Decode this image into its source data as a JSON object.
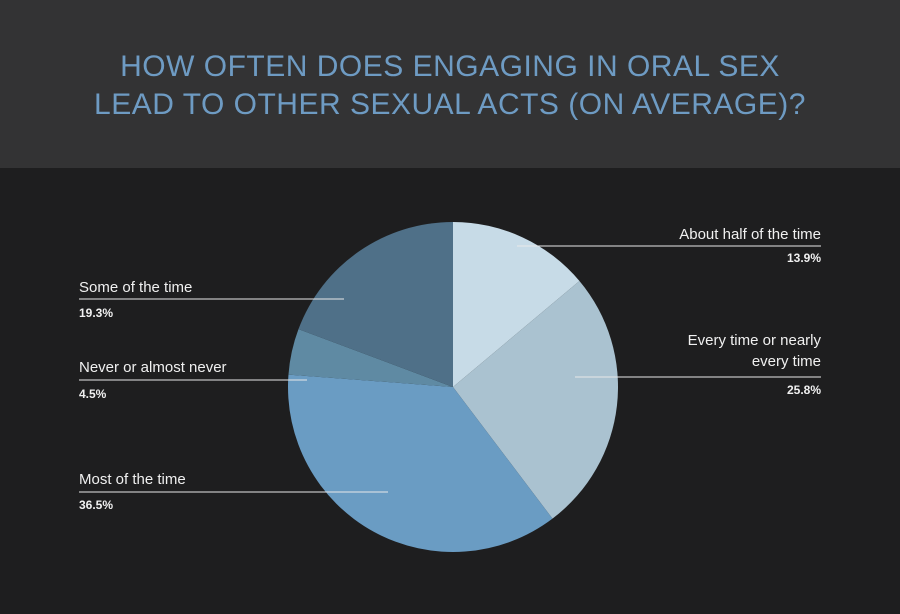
{
  "title_lines": [
    "HOW OFTEN DOES ENGAGING IN ORAL SEX",
    "LEAD TO OTHER SEXUAL ACTS (ON AVERAGE)?"
  ],
  "colors": {
    "title": "#6e9bc3",
    "about_half": "#c7dbe7",
    "every_time": "#aac2d0",
    "most": "#6a9cc3",
    "never": "#5f8aa3",
    "some": "#4f7088"
  },
  "chart_data": {
    "type": "pie",
    "title": "HOW OFTEN DOES ENGAGING IN ORAL SEX LEAD TO OTHER SEXUAL ACTS (ON AVERAGE)?",
    "slices": [
      {
        "label": "About half of the time",
        "value": 13.9,
        "display": "13.9%",
        "color": "#c7dbe7"
      },
      {
        "label": "Every time or nearly every time",
        "value": 25.8,
        "display": "25.8%",
        "color": "#aac2d0"
      },
      {
        "label": "Most of the time",
        "value": 36.5,
        "display": "36.5%",
        "color": "#6a9cc3"
      },
      {
        "label": "Never or almost never",
        "value": 4.5,
        "display": "4.5%",
        "color": "#5f8aa3"
      },
      {
        "label": "Some of the time",
        "value": 19.3,
        "display": "19.3%",
        "color": "#4f7088"
      }
    ]
  },
  "labels": {
    "about_half": {
      "line1": "About half of the time",
      "pct": "13.9%"
    },
    "every_time": {
      "line1": "Every time or nearly",
      "line2": "every time",
      "pct": "25.8%"
    },
    "most": {
      "line1": "Most of the time",
      "pct": "36.5%"
    },
    "never": {
      "line1": "Never or almost never",
      "pct": "4.5%"
    },
    "some": {
      "line1": "Some of the time",
      "pct": "19.3%"
    }
  }
}
